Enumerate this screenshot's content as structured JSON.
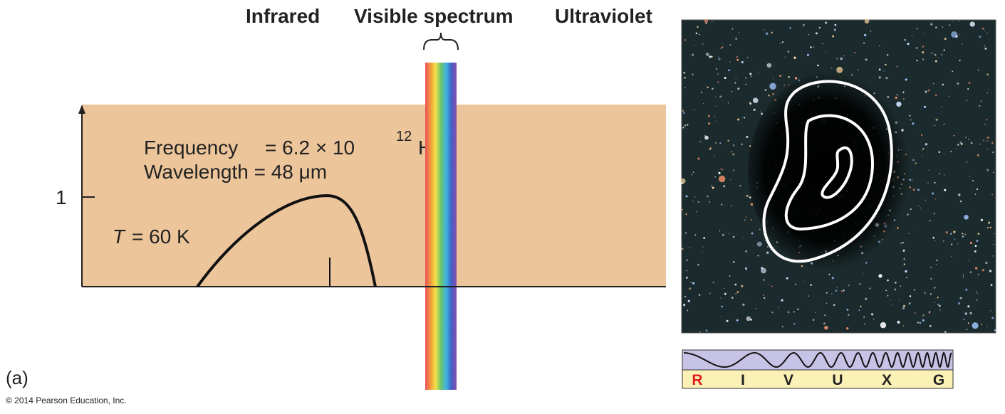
{
  "header": {
    "infrared": "Infrared",
    "visible": "Visible spectrum",
    "ultraviolet": "Ultraviolet"
  },
  "plot": {
    "y_tick": "1",
    "frequency": {
      "label": "Frequency",
      "value": "= 6.2 × 10",
      "exponent": "12",
      "unit": "Hz"
    },
    "wavelength": "Wavelength = 48 μm",
    "temperature": {
      "symbol": "T",
      "value": "= 60 K"
    }
  },
  "panel_label": "(a)",
  "copyright": "© 2014 Pearson Education, Inc.",
  "bands": [
    "R",
    "I",
    "V",
    "U",
    "X",
    "G"
  ]
}
